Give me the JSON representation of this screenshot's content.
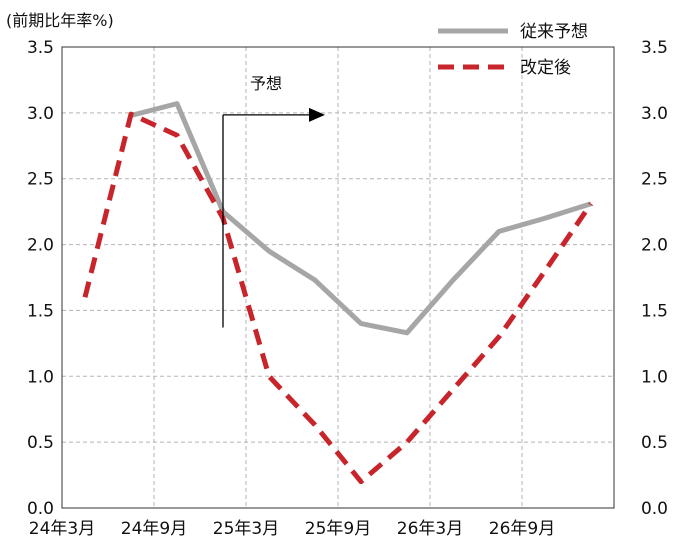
{
  "chart_data": {
    "type": "line",
    "unit_label": "(前期比年率%)",
    "x": [
      "24年3月",
      "24年6月",
      "24年9月",
      "24年12月",
      "25年3月",
      "25年6月",
      "25年9月",
      "25年12月",
      "26年3月",
      "26年6月",
      "26年9月",
      "26年12月"
    ],
    "xtick_labels": [
      "24年3月",
      "24年9月",
      "25年3月",
      "25年9月",
      "26年3月",
      "26年9月"
    ],
    "ylim": [
      0,
      3.5
    ],
    "yticks": [
      "0.0",
      "0.5",
      "1.0",
      "1.5",
      "2.0",
      "2.5",
      "3.0",
      "3.5"
    ],
    "grid": true,
    "legend_position": "top-right",
    "series": [
      {
        "name": "従来予想",
        "color": "#a6a6a6",
        "style": "solid",
        "values": [
          null,
          2.98,
          3.07,
          2.25,
          1.95,
          1.73,
          1.4,
          1.33,
          1.73,
          2.1,
          2.2,
          2.31
        ]
      },
      {
        "name": "改定後",
        "color": "#c8242b",
        "style": "dashed",
        "values": [
          1.6,
          2.99,
          2.83,
          2.2,
          1.0,
          0.63,
          0.2,
          0.5,
          0.9,
          1.3,
          1.8,
          2.31
        ]
      }
    ],
    "annotation": {
      "text": "予想",
      "at": "24年12月"
    }
  }
}
